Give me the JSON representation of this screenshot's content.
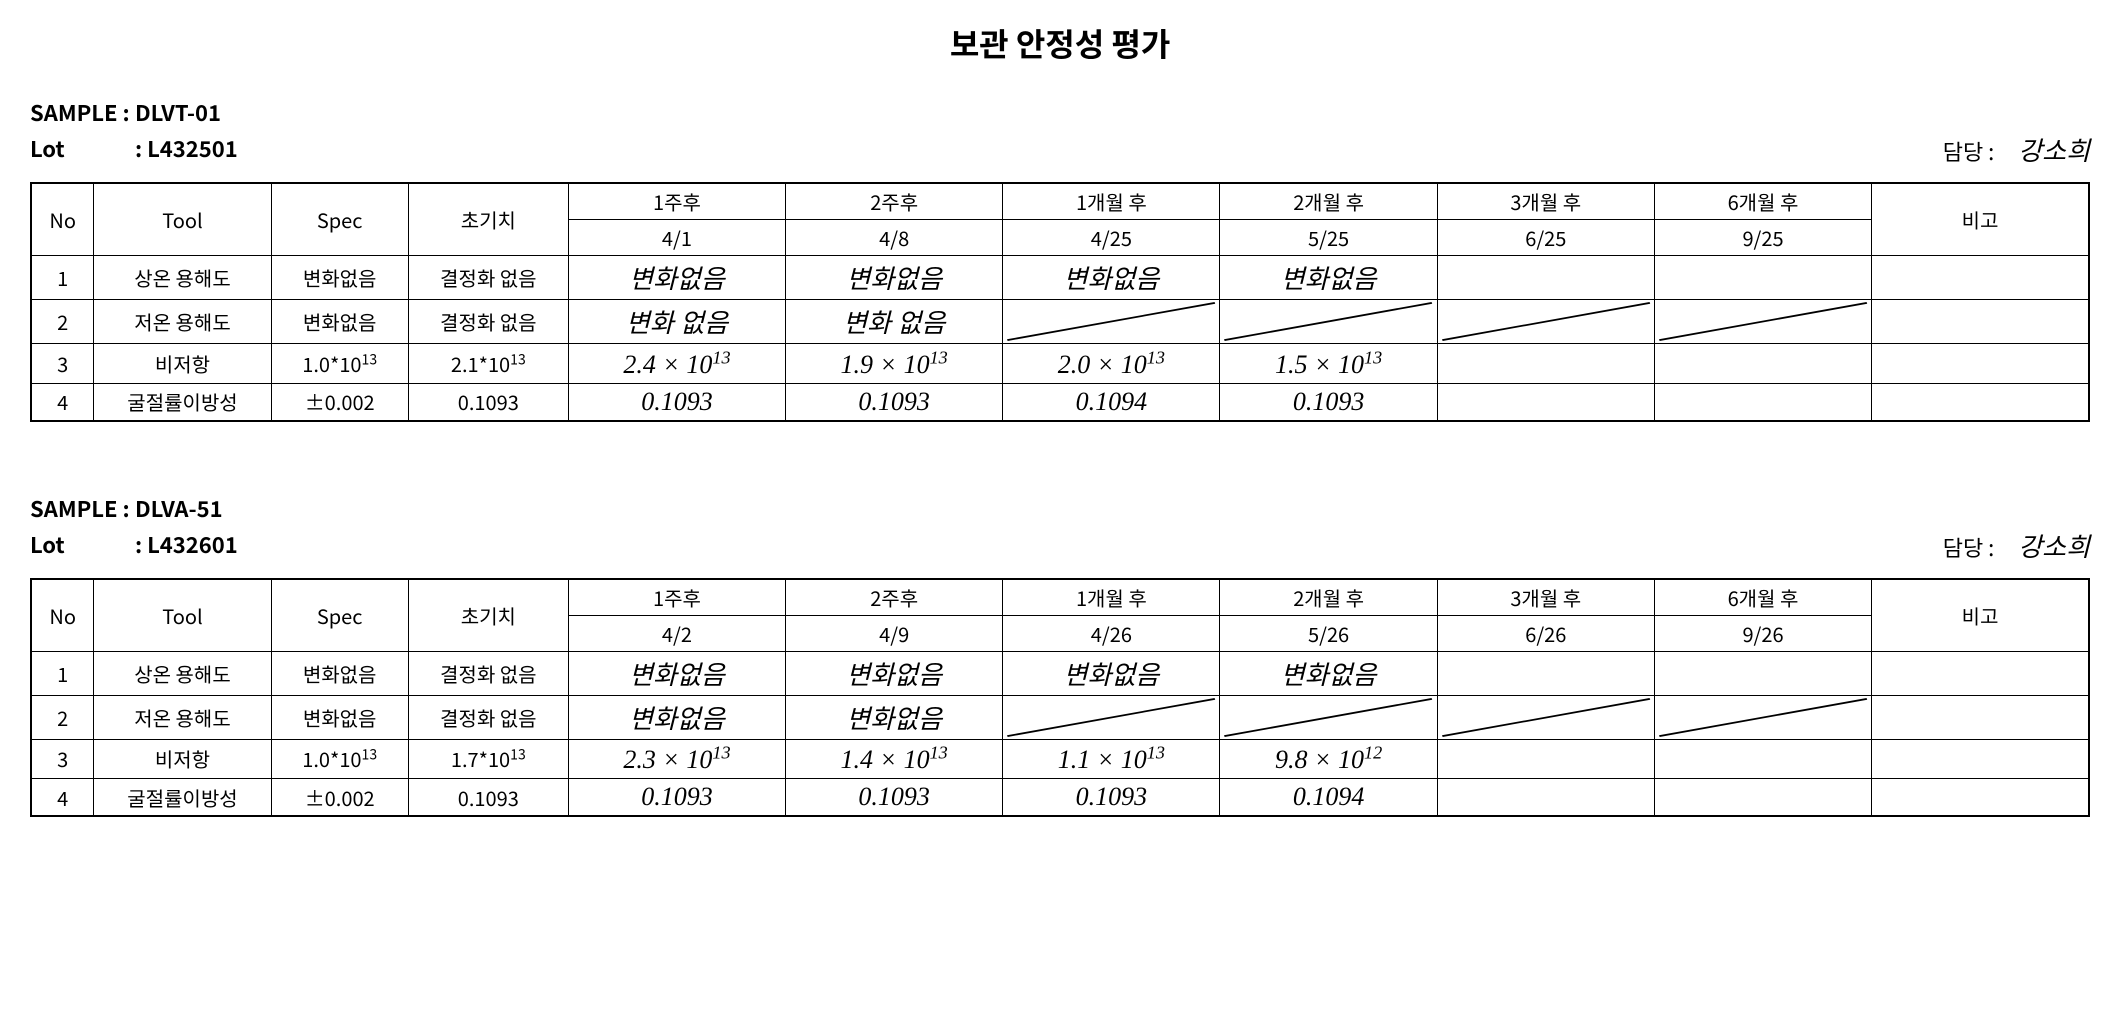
{
  "page_title": "보관 안정성 평가",
  "labels": {
    "sample": "SAMPLE :",
    "lot": "Lot",
    "person": "담당 :",
    "col_no": "No",
    "col_tool": "Tool",
    "col_spec": "Spec",
    "col_init": "초기치",
    "col_bigo": "비고"
  },
  "periods": [
    "1주후",
    "2주후",
    "1개월 후",
    "2개월 후",
    "3개월 후",
    "6개월 후"
  ],
  "sections": [
    {
      "sample": "DLVT-01",
      "lot": ": L432501",
      "person": "강소희",
      "dates": [
        "4/1",
        "4/8",
        "4/25",
        "5/25",
        "6/25",
        "9/25"
      ],
      "rows": [
        {
          "no": "1",
          "tool": "상온 용해도",
          "spec": "변화없음",
          "init": "결정화 없음",
          "cells": [
            {
              "t": "변화없음",
              "hand": true
            },
            {
              "t": "변화없음",
              "hand": true
            },
            {
              "t": "변화없음",
              "hand": true
            },
            {
              "t": "변화없음",
              "hand": true
            },
            {
              "t": ""
            },
            {
              "t": ""
            }
          ]
        },
        {
          "no": "2",
          "tool": "저온 용해도",
          "spec": "변화없음",
          "init": "결정화 없음",
          "cells": [
            {
              "t": "변화 없음",
              "hand": true
            },
            {
              "t": "변화 없음",
              "hand": true
            },
            {
              "diag": true
            },
            {
              "diag": true
            },
            {
              "diag": true
            },
            {
              "diag": true
            }
          ]
        },
        {
          "no": "3",
          "tool": "비저항",
          "spec_html": "1.0*10<span class='sup'>13</span>",
          "init_html": "2.1*10<span class='sup'>13</span>",
          "cells": [
            {
              "html": "2.4 × 10<span class='sup'>13</span>",
              "hand": true
            },
            {
              "html": "1.9 × 10<span class='sup'>13</span>",
              "hand": true
            },
            {
              "html": "2.0 × 10<span class='sup'>13</span>",
              "hand": true
            },
            {
              "html": "1.5 × 10<span class='sup'>13</span>",
              "hand": true
            },
            {
              "t": ""
            },
            {
              "t": ""
            }
          ]
        },
        {
          "no": "4",
          "tool": "굴절률이방성",
          "spec": "±0.002",
          "init": "0.1093",
          "cells": [
            {
              "t": "0.1093",
              "hand": true
            },
            {
              "t": "0.1093",
              "hand": true
            },
            {
              "t": "0.1094",
              "hand": true
            },
            {
              "t": "0.1093",
              "hand": true
            },
            {
              "t": ""
            },
            {
              "t": ""
            }
          ]
        }
      ]
    },
    {
      "sample": "DLVA-51",
      "lot": ": L432601",
      "person": "강소희",
      "dates": [
        "4/2",
        "4/9",
        "4/26",
        "5/26",
        "6/26",
        "9/26"
      ],
      "rows": [
        {
          "no": "1",
          "tool": "상온 용해도",
          "spec": "변화없음",
          "init": "결정화 없음",
          "cells": [
            {
              "t": "변화없음",
              "hand": true
            },
            {
              "t": "변화없음",
              "hand": true
            },
            {
              "t": "변화없음",
              "hand": true
            },
            {
              "t": "변화없음",
              "hand": true
            },
            {
              "t": ""
            },
            {
              "t": ""
            }
          ]
        },
        {
          "no": "2",
          "tool": "저온 용해도",
          "spec": "변화없음",
          "init": "결정화 없음",
          "cells": [
            {
              "t": "변화없음",
              "hand": true
            },
            {
              "t": "변화없음",
              "hand": true
            },
            {
              "diag": true
            },
            {
              "diag": true
            },
            {
              "diag": true
            },
            {
              "diag": true
            }
          ]
        },
        {
          "no": "3",
          "tool": "비저항",
          "spec_html": "1.0*10<span class='sup'>13</span>",
          "init_html": "1.7*10<span class='sup'>13</span>",
          "cells": [
            {
              "html": "2.3 × 10<span class='sup'>13</span>",
              "hand": true
            },
            {
              "html": "1.4 × 10<span class='sup'>13</span>",
              "hand": true
            },
            {
              "html": "1.1 × 10<span class='sup'>13</span>",
              "hand": true
            },
            {
              "html": "9.8 × 10<span class='sup'>12</span>",
              "hand": true
            },
            {
              "t": ""
            },
            {
              "t": ""
            }
          ]
        },
        {
          "no": "4",
          "tool": "굴절률이방성",
          "spec": "±0.002",
          "init": "0.1093",
          "cells": [
            {
              "t": "0.1093",
              "hand": true
            },
            {
              "t": "0.1093",
              "hand": true
            },
            {
              "t": "0.1093",
              "hand": true
            },
            {
              "t": "0.1094",
              "hand": true
            },
            {
              "t": ""
            },
            {
              "t": ""
            }
          ]
        }
      ]
    }
  ]
}
